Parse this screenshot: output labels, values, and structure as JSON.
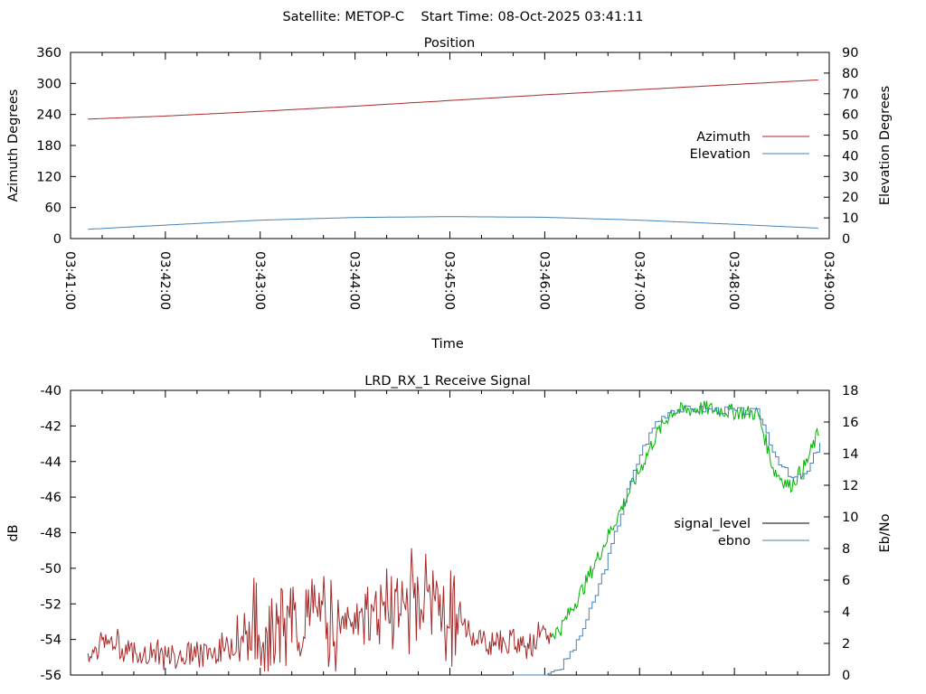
{
  "header": {
    "title": "Satellite: METOP-C    Start Time: 08-Oct-2025 03:41:11"
  },
  "colors": {
    "azimuth": "#a52a2a",
    "elevation": "#4682b4",
    "signal_level_legend": "#000000",
    "signal_level_trace": "#a52a2a",
    "signal_level_high": "#00b400",
    "ebno": "#4682b4",
    "axis": "#000000"
  },
  "chart_data": [
    {
      "type": "line",
      "title": "Position",
      "xlabel": "Time",
      "ylabel": "Azimuth Degrees",
      "y2label": "Elevation Degrees",
      "xlim": [
        "03:41:00",
        "03:49:00"
      ],
      "ylim": [
        0,
        360
      ],
      "y2lim": [
        0,
        90
      ],
      "x_ticks": [
        "03:41:00",
        "03:42:00",
        "03:43:00",
        "03:44:00",
        "03:45:00",
        "03:46:00",
        "03:47:00",
        "03:48:00",
        "03:49:00"
      ],
      "y_ticks": [
        "0",
        "60",
        "120",
        "180",
        "240",
        "300",
        "360"
      ],
      "y2_ticks": [
        "0",
        "10",
        "20",
        "30",
        "40",
        "50",
        "60",
        "70",
        "80",
        "90"
      ],
      "grid": false,
      "legend_position": "right",
      "series": [
        {
          "name": "Azimuth",
          "axis": "y1",
          "x": [
            "03:41:11",
            "03:42:00",
            "03:43:00",
            "03:44:00",
            "03:45:00",
            "03:46:00",
            "03:47:00",
            "03:48:00",
            "03:48:54"
          ],
          "values": [
            231,
            237,
            246,
            256,
            267,
            278,
            288,
            298,
            307
          ]
        },
        {
          "name": "Elevation",
          "axis": "y2",
          "x": [
            "03:41:11",
            "03:42:00",
            "03:43:00",
            "03:44:00",
            "03:45:00",
            "03:46:00",
            "03:47:00",
            "03:48:00",
            "03:48:54"
          ],
          "values": [
            4.5,
            6.5,
            8.9,
            10.2,
            10.6,
            10.3,
            8.9,
            6.9,
            5.0
          ]
        }
      ]
    },
    {
      "type": "line",
      "title": "LRD_RX_1 Receive Signal",
      "xlabel": "",
      "ylabel": "dB",
      "y2label": "Eb/No",
      "xlim": [
        "03:41:00",
        "03:49:00"
      ],
      "ylim": [
        -56,
        -40
      ],
      "y2lim": [
        0,
        18
      ],
      "y_ticks": [
        "-40",
        "-42",
        "-44",
        "-46",
        "-48",
        "-50",
        "-52",
        "-54",
        "-56"
      ],
      "y2_ticks": [
        "0",
        "2",
        "4",
        "6",
        "8",
        "10",
        "12",
        "14",
        "16",
        "18"
      ],
      "grid": false,
      "legend_position": "right",
      "series": [
        {
          "name": "signal_level",
          "axis": "y1",
          "x": [
            "03:41:11",
            "03:41:20",
            "03:41:40",
            "03:42:00",
            "03:42:20",
            "03:42:40",
            "03:43:00",
            "03:43:20",
            "03:43:40",
            "03:44:00",
            "03:44:20",
            "03:44:40",
            "03:45:00",
            "03:45:20",
            "03:45:40",
            "03:45:55",
            "03:46:10",
            "03:46:25",
            "03:46:40",
            "03:47:00",
            "03:47:10",
            "03:47:20",
            "03:47:40",
            "03:48:00",
            "03:48:15",
            "03:48:25",
            "03:48:35",
            "03:48:45",
            "03:48:54"
          ],
          "values": [
            -55.0,
            -54.2,
            -54.8,
            -55.2,
            -55.0,
            -54.6,
            -54.0,
            -53.6,
            -53.4,
            -53.2,
            -52.6,
            -52.2,
            -53.2,
            -54.2,
            -54.5,
            -54.2,
            -53.4,
            -51.0,
            -48.2,
            -44.5,
            -42.6,
            -41.2,
            -41.0,
            -41.2,
            -41.3,
            -44.5,
            -45.4,
            -44.2,
            -42.2
          ]
        },
        {
          "name": "ebno",
          "axis": "y2",
          "x": [
            "03:45:40",
            "03:46:00",
            "03:46:10",
            "03:46:20",
            "03:46:30",
            "03:46:40",
            "03:46:50",
            "03:47:00",
            "03:47:10",
            "03:47:20",
            "03:47:40",
            "03:48:00",
            "03:48:15",
            "03:48:25",
            "03:48:35",
            "03:48:45",
            "03:48:54"
          ],
          "values": [
            0,
            0,
            0.5,
            2.0,
            4.5,
            7.5,
            11.0,
            14.0,
            16.0,
            16.8,
            16.8,
            16.7,
            16.6,
            14.0,
            12.4,
            12.6,
            14.8
          ]
        }
      ]
    }
  ]
}
